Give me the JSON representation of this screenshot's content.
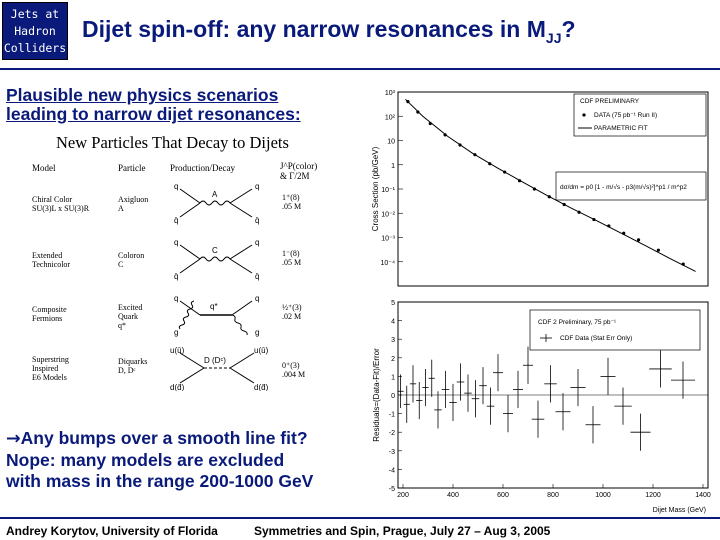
{
  "logo": {
    "lines": [
      "Jets at",
      "Hadron",
      "Colliders"
    ]
  },
  "title": {
    "main": "Dijet spin-off: any narrow resonances in M",
    "subscript": "JJ",
    "suffix": "?"
  },
  "intro": {
    "line1": "Plausible new physics scenarios",
    "line2": "leading to narrow dijet resonances",
    "colon": ":"
  },
  "particle_table": {
    "title": "New Particles That Decay to Dijets",
    "headers": [
      "Model",
      "Particle",
      "Production/Decay",
      "J^P(color)\n& Γ/2M"
    ],
    "rows": [
      {
        "model": "Chiral Color\nSU(3)L x SU(3)R",
        "particle": "Axigluon\nA",
        "props": "1⁺(8)\n.05 M"
      },
      {
        "model": "Extended\nTechnicolor",
        "particle": "Coloron\nC",
        "props": "1⁻(8)\n.05 M"
      },
      {
        "model": "Composite\nFermions",
        "particle": "Excited\nQuark\nq*",
        "props": "½⁺(3)\n.02 M"
      },
      {
        "model": "Superstring\nInspired\nE6 Models",
        "particle": "Diquarks\nD, Dᶜ",
        "props": "0⁺(3)\n.004 M"
      }
    ],
    "diagram_labels": {
      "axigluon": "A",
      "coloron": "C",
      "excited": "q*",
      "diquark": "D (Dᶜ)",
      "q": "q",
      "qbar": "q̄",
      "g": "g",
      "u": "u(ū)",
      "d": "d(d̄)"
    }
  },
  "conclusion": {
    "arrow": "→",
    "line1": "Any bumps over a smooth line fit?",
    "line2": "Nope: many models are excluded",
    "line3": "with mass in the range 200-1000 GeV"
  },
  "top_plot": {
    "ylabel": "Cross Section (pb/GeV)",
    "legend": [
      "CDF PRELIMINARY",
      "DATA (75 pb⁻¹ Run II)",
      "PARAMETRIC FIT"
    ],
    "formula": "dσ/dm = p0 [1 - m/√s - p3(m/√s)²]^p1 / m^p2"
  },
  "bottom_plot": {
    "ylabel": "Residuals=(Data-Fit)/Error",
    "xlabel": "Dijet Mass (GeV)",
    "legend": [
      "CDF 2 Preliminary, 75 pb⁻¹",
      "CDF Data (Stat Err Only)"
    ]
  },
  "chart_data": [
    {
      "type": "scatter",
      "title": "",
      "ylabel": "Cross Section (pb/GeV)",
      "xlabel": "",
      "log_y": true,
      "xlim": [
        150,
        1400
      ],
      "ylim": [
        1e-05,
        1000
      ],
      "yticks": [
        "10³",
        "10²",
        "10",
        "1",
        "10⁻¹",
        "10⁻²",
        "10⁻³",
        "10⁻⁴"
      ],
      "series": [
        {
          "name": "DATA (75 pb⁻¹ Run II)",
          "x": [
            190,
            230,
            280,
            340,
            400,
            460,
            520,
            580,
            640,
            700,
            760,
            820,
            880,
            940,
            1000,
            1060,
            1120,
            1200,
            1300
          ],
          "y": [
            400,
            150,
            50,
            17,
            6.5,
            2.6,
            1.1,
            0.5,
            0.22,
            0.1,
            0.048,
            0.023,
            0.011,
            0.0055,
            0.003,
            0.0015,
            0.0008,
            0.0003,
            8e-05
          ]
        },
        {
          "name": "PARAMETRIC FIT",
          "x": [
            180,
            250,
            350,
            450,
            550,
            650,
            750,
            850,
            950,
            1050,
            1150,
            1250,
            1350
          ],
          "y": [
            500,
            100,
            15,
            3,
            0.75,
            0.2,
            0.055,
            0.016,
            0.005,
            0.0015,
            0.00045,
            0.00013,
            4e-05
          ]
        }
      ]
    },
    {
      "type": "scatter",
      "title": "",
      "ylabel": "Residuals=(Data-Fit)/Error",
      "xlabel": "Dijet Mass (GeV)",
      "xlim": [
        180,
        1420
      ],
      "ylim": [
        -5,
        5
      ],
      "xticks": [
        200,
        400,
        600,
        800,
        1000,
        1200,
        1400
      ],
      "yticks": [
        5,
        4,
        3,
        2,
        1,
        0,
        -1,
        -2,
        -3,
        -4,
        -5
      ],
      "series": [
        {
          "name": "CDF Data (Stat Err Only)",
          "x": [
            190,
            215,
            240,
            265,
            290,
            315,
            340,
            370,
            400,
            430,
            460,
            490,
            520,
            550,
            580,
            620,
            660,
            700,
            740,
            790,
            840,
            900,
            960,
            1020,
            1080,
            1150,
            1230,
            1320
          ],
          "y": [
            0.2,
            -0.5,
            0.6,
            -0.3,
            0.4,
            0.9,
            -0.8,
            0.3,
            -0.4,
            0.7,
            0.1,
            -0.2,
            0.5,
            -0.6,
            1.2,
            -1.0,
            0.3,
            1.6,
            -1.3,
            0.6,
            -0.9,
            0.4,
            -1.6,
            1.0,
            -0.6,
            -2.0,
            1.4,
            0.8
          ],
          "err": [
            0.9,
            1,
            1,
            1,
            1,
            1,
            1,
            1,
            1,
            1,
            1,
            1,
            1,
            1,
            1,
            1,
            1,
            1,
            1,
            1,
            1,
            1,
            1,
            1,
            1,
            1,
            1,
            1
          ]
        }
      ]
    }
  ]
}
